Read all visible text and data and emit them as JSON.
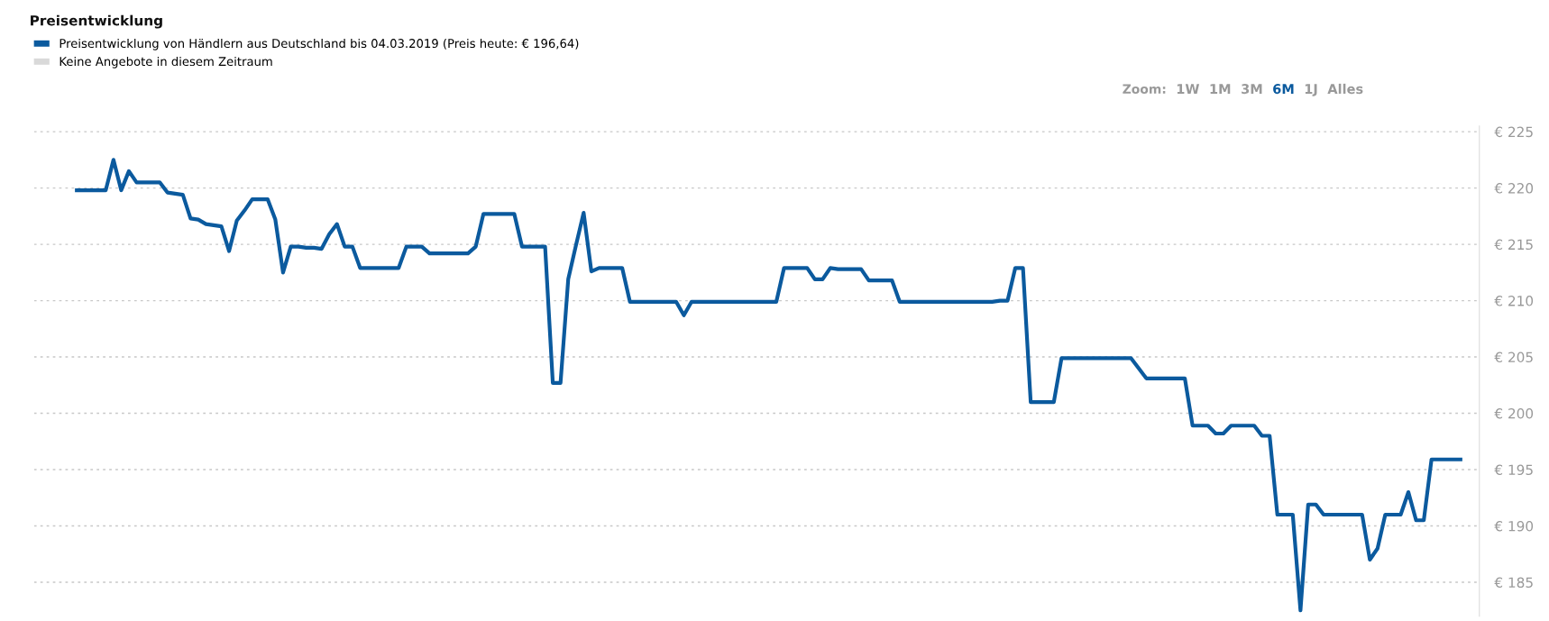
{
  "chart_data": {
    "type": "line",
    "title": "Preisentwicklung",
    "categories": [
      null,
      null,
      null,
      null,
      null,
      null,
      null,
      null,
      null,
      null,
      null,
      null,
      null,
      null,
      null,
      null,
      null,
      null,
      null,
      null,
      null,
      null,
      null,
      null,
      null,
      null,
      null,
      null,
      null,
      null,
      null,
      null,
      null,
      null,
      null,
      null,
      null,
      null,
      null,
      null,
      null,
      null,
      null,
      null,
      null,
      null,
      null,
      null,
      null,
      null,
      null,
      null,
      null,
      null,
      null,
      null,
      null,
      null,
      null,
      null,
      null,
      null,
      null,
      null,
      null,
      null,
      null,
      null,
      null,
      null,
      null,
      null,
      null,
      null,
      null,
      null,
      null,
      null,
      null,
      null,
      null,
      null,
      null,
      null,
      null,
      null,
      null,
      null,
      null,
      null,
      null,
      null,
      null,
      null,
      null,
      null,
      null,
      null,
      null,
      null,
      null,
      null,
      null,
      null,
      null,
      null,
      null,
      null,
      null,
      null,
      null,
      null,
      null,
      null,
      null,
      null,
      null,
      null,
      null,
      null,
      null,
      null,
      null,
      null,
      null,
      null,
      null,
      null,
      null,
      null,
      null,
      null,
      null,
      null,
      null,
      null,
      null,
      null,
      null,
      null,
      null,
      null,
      null,
      null,
      null,
      null,
      null,
      null,
      null,
      null,
      null,
      null,
      null,
      null,
      null,
      null,
      null,
      null,
      null,
      null,
      null,
      null,
      null,
      null,
      null,
      null,
      null,
      null,
      null,
      null,
      null,
      null,
      null,
      null,
      null,
      null,
      null,
      null,
      null,
      null,
      null
    ],
    "series": [
      {
        "name": "Preisentwicklung von Händlern aus Deutschland bis 04.03.2019 (Preis heute: € 196,64)",
        "color": "#0b5a9e",
        "values": [
          219.8,
          219.8,
          219.8,
          219.8,
          219.8,
          222.5,
          219.8,
          221.5,
          220.5,
          220.5,
          220.5,
          220.5,
          219.6,
          219.5,
          219.4,
          217.3,
          217.2,
          216.8,
          216.7,
          216.6,
          214.4,
          217.1,
          218.0,
          219.0,
          219.0,
          219.0,
          217.2,
          212.5,
          214.8,
          214.8,
          214.7,
          214.7,
          214.6,
          215.9,
          216.8,
          214.8,
          214.8,
          212.9,
          212.9,
          212.9,
          212.9,
          212.9,
          212.9,
          214.8,
          214.8,
          214.8,
          214.2,
          214.2,
          214.2,
          214.2,
          214.2,
          214.2,
          214.8,
          217.7,
          217.7,
          217.7,
          217.7,
          217.7,
          214.8,
          214.8,
          214.8,
          214.8,
          202.7,
          202.7,
          211.9,
          214.9,
          217.8,
          212.6,
          212.9,
          212.9,
          212.9,
          212.9,
          209.9,
          209.9,
          209.9,
          209.9,
          209.9,
          209.9,
          209.9,
          208.7,
          209.9,
          209.9,
          209.9,
          209.9,
          209.9,
          209.9,
          209.9,
          209.9,
          209.9,
          209.9,
          209.9,
          209.9,
          212.9,
          212.9,
          212.9,
          212.9,
          211.9,
          211.9,
          212.9,
          212.8,
          212.8,
          212.8,
          212.8,
          211.8,
          211.8,
          211.8,
          211.8,
          209.9,
          209.9,
          209.9,
          209.9,
          209.9,
          209.9,
          209.9,
          209.9,
          209.9,
          209.9,
          209.9,
          209.9,
          209.9,
          210.0,
          210.0,
          212.9,
          212.9,
          201.0,
          201.0,
          201.0,
          201.0,
          204.9,
          204.9,
          204.9,
          204.9,
          204.9,
          204.9,
          204.9,
          204.9,
          204.9,
          204.9,
          204.0,
          203.1,
          203.1,
          203.1,
          203.1,
          203.1,
          203.1,
          198.9,
          198.9,
          198.9,
          198.2,
          198.2,
          198.9,
          198.9,
          198.9,
          198.9,
          198.0,
          198.0,
          191.0,
          191.0,
          191.0,
          182.5,
          191.9,
          191.9,
          191.0,
          191.0,
          191.0,
          191.0,
          191.0,
          191.0,
          187.0,
          188.0,
          191.0,
          191.0,
          191.0,
          193.0,
          190.5,
          190.5,
          195.9,
          195.9,
          195.9,
          195.9,
          195.9
        ]
      },
      {
        "name": "Keine Angebote in diesem Zeitraum",
        "color": "#d9d9d9",
        "values": [
          null,
          null,
          null,
          null,
          null,
          null,
          null,
          null,
          null,
          null,
          null,
          null,
          null,
          null,
          null,
          null,
          null,
          null,
          null,
          null,
          null,
          null,
          null,
          null,
          null,
          null,
          null,
          null,
          null,
          null,
          null,
          null,
          null,
          null,
          null,
          null,
          null,
          null,
          null,
          null,
          null,
          null,
          null,
          null,
          null,
          null,
          null,
          null,
          null,
          null,
          null,
          null,
          null,
          null,
          null,
          null,
          null,
          null,
          null,
          null,
          null,
          null,
          null,
          null,
          null,
          null,
          null,
          null,
          null,
          null,
          null,
          null,
          null,
          null,
          null,
          null,
          null,
          null,
          null,
          null,
          null,
          null,
          null,
          null,
          null,
          null,
          null,
          null,
          null,
          null,
          null,
          null,
          null,
          null,
          null,
          null,
          null,
          null,
          null,
          null,
          null,
          null,
          null,
          null,
          null,
          null,
          null,
          null,
          null,
          null,
          null,
          null,
          null,
          null,
          null,
          null,
          null,
          null,
          null,
          null,
          null,
          null,
          null,
          null,
          null,
          null,
          null,
          null,
          null,
          null,
          null,
          null,
          null,
          null,
          null,
          null,
          null,
          null,
          null,
          null,
          null,
          null,
          null,
          null,
          null,
          null,
          null,
          null,
          null,
          null,
          null,
          null,
          null,
          null,
          null,
          null,
          null,
          null,
          null,
          null,
          null,
          null,
          null,
          null,
          null,
          null,
          null,
          null,
          null,
          null,
          null,
          null,
          null,
          null,
          null,
          null,
          null,
          null,
          null,
          null,
          null
        ]
      }
    ],
    "yticks": [
      {
        "value": 185,
        "label": "€ 185"
      },
      {
        "value": 190,
        "label": "€ 190"
      },
      {
        "value": 195,
        "label": "€ 195"
      },
      {
        "value": 200,
        "label": "€ 200"
      },
      {
        "value": 205,
        "label": "€ 205"
      },
      {
        "value": 210,
        "label": "€ 210"
      },
      {
        "value": 215,
        "label": "€ 215"
      },
      {
        "value": 220,
        "label": "€ 220"
      },
      {
        "value": 225,
        "label": "€ 225"
      }
    ],
    "ylim": [
      182,
      225.5
    ],
    "tick_labels": "y",
    "grid": "y",
    "legend": "top left",
    "marker": "none",
    "line_style": "solid",
    "annotations": [
      "Zoom:",
      "1W",
      "1M",
      "3M",
      "6M",
      "1J",
      "Alles"
    ]
  }
}
